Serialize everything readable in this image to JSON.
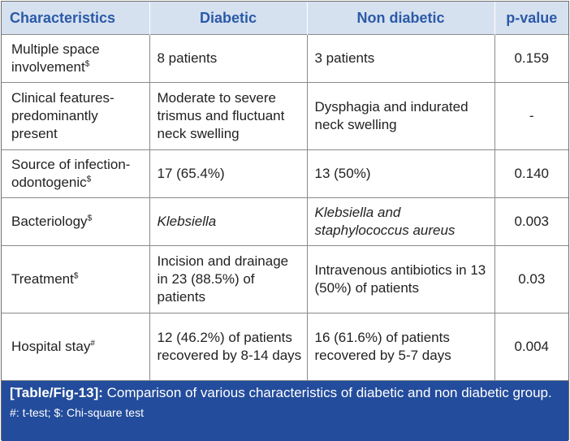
{
  "table": {
    "headers": [
      "Characteristics",
      "Diabetic",
      "Non diabetic",
      "p-value"
    ],
    "rows": [
      {
        "characteristic": "Multiple space involvement",
        "mark": "$",
        "diabetic": "8 patients",
        "non_diabetic": "3 patients",
        "p_value": "0.159"
      },
      {
        "characteristic": "Clinical features-predominantly present",
        "mark": "",
        "diabetic": "Moderate to severe trismus and fluctuant neck swelling",
        "non_diabetic": "Dysphagia and indurated neck swelling",
        "p_value": "-"
      },
      {
        "characteristic": "Source of infection-odontogenic",
        "mark": "$",
        "diabetic": "17 (65.4%)",
        "non_diabetic": "13 (50%)",
        "p_value": "0.140"
      },
      {
        "characteristic": "Bacteriology",
        "mark": "$",
        "diabetic": "Klebsiella",
        "non_diabetic": "Klebsiella and staphylococcus aureus",
        "p_value": "0.003"
      },
      {
        "characteristic": "Treatment",
        "mark": "$",
        "diabetic": "Incision and drainage in 23 (88.5%) of patients",
        "non_diabetic": "Intravenous antibiotics in 13 (50%) of patients",
        "p_value": "0.03"
      },
      {
        "characteristic": "Hospital stay",
        "mark": "#",
        "diabetic": "12 (46.2%) of patients recovered by 8-14 days",
        "non_diabetic": "16 (61.6%) of patients recovered by 5-7 days",
        "p_value": "0.004"
      }
    ]
  },
  "caption": {
    "tag": "[Table/Fig-13]:",
    "text": "Comparison of various characteristics of diabetic and non diabetic group.",
    "footnote": "#: t-test; $: Chi-square test"
  },
  "colors": {
    "header_bg": "#d6e1f0",
    "header_text": "#2b5aa8",
    "caption_bg": "#234c9c",
    "border": "#8a8a8a"
  }
}
